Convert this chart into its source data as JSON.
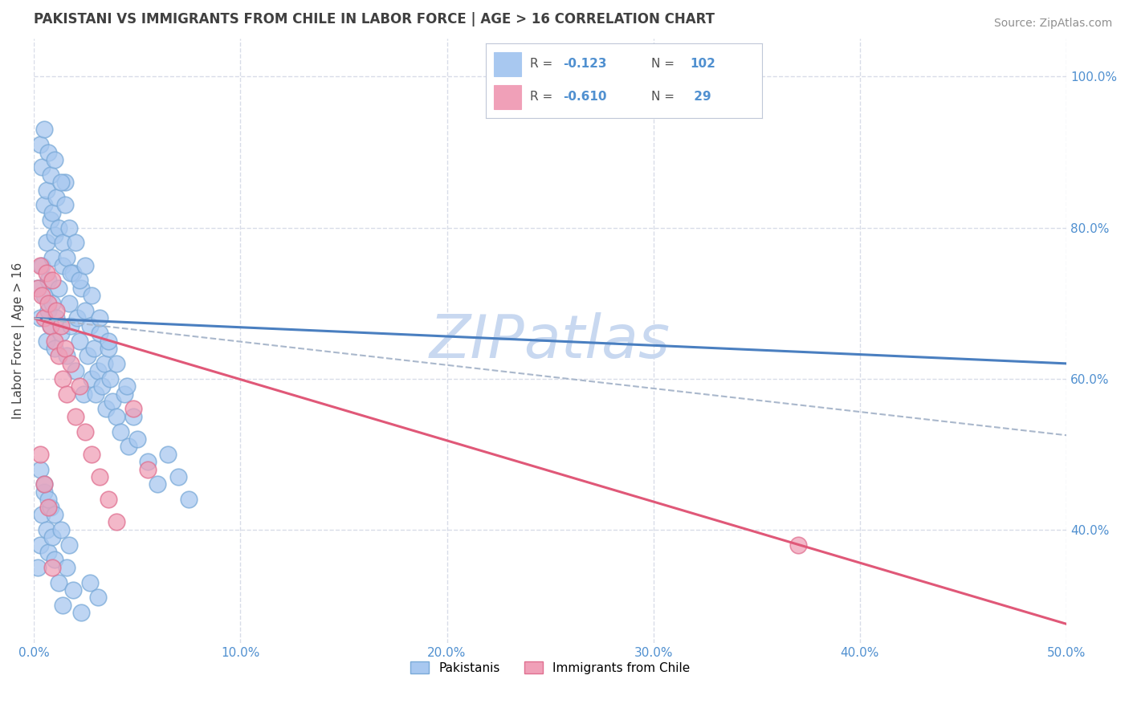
{
  "title": "PAKISTANI VS IMMIGRANTS FROM CHILE IN LABOR FORCE | AGE > 16 CORRELATION CHART",
  "source_text": "Source: ZipAtlas.com",
  "ylabel": "In Labor Force | Age > 16",
  "xlim": [
    0.0,
    0.5
  ],
  "ylim": [
    0.25,
    1.05
  ],
  "xticks": [
    0.0,
    0.1,
    0.2,
    0.3,
    0.4,
    0.5
  ],
  "xticklabels": [
    "0.0%",
    "10.0%",
    "20.0%",
    "30.0%",
    "40.0%",
    "50.0%"
  ],
  "yticks": [
    0.4,
    0.6,
    0.8,
    1.0
  ],
  "yticklabels": [
    "40.0%",
    "60.0%",
    "80.0%",
    "100.0%"
  ],
  "legend_label1": "Pakistanis",
  "legend_label2": "Immigrants from Chile",
  "blue_color": "#a8c8f0",
  "pink_color": "#f0a0b8",
  "blue_edge_color": "#7aaad8",
  "pink_edge_color": "#e07090",
  "blue_line_color": "#4a7fc0",
  "pink_line_color": "#e05878",
  "dashed_line_color": "#aab8cc",
  "watermark": "ZIPatlas",
  "watermark_color": "#c8d8f0",
  "title_color": "#404040",
  "source_color": "#909090",
  "tick_color": "#5090d0",
  "grid_color": "#d8dce8",
  "background_color": "#ffffff",
  "blue_trend_x": [
    0.0,
    0.5
  ],
  "blue_trend_y": [
    0.68,
    0.62
  ],
  "pink_trend_x": [
    0.0,
    0.5
  ],
  "pink_trend_y": [
    0.68,
    0.275
  ],
  "dashed_trend_x": [
    0.0,
    0.5
  ],
  "dashed_trend_y": [
    0.68,
    0.525
  ],
  "blue_scatter_x": [
    0.002,
    0.003,
    0.004,
    0.005,
    0.005,
    0.006,
    0.006,
    0.007,
    0.007,
    0.008,
    0.008,
    0.009,
    0.009,
    0.01,
    0.01,
    0.011,
    0.012,
    0.013,
    0.014,
    0.015,
    0.016,
    0.017,
    0.018,
    0.019,
    0.02,
    0.021,
    0.022,
    0.023,
    0.024,
    0.025,
    0.026,
    0.027,
    0.028,
    0.029,
    0.03,
    0.031,
    0.032,
    0.033,
    0.034,
    0.035,
    0.036,
    0.037,
    0.038,
    0.04,
    0.042,
    0.044,
    0.046,
    0.048,
    0.05,
    0.055,
    0.06,
    0.065,
    0.07,
    0.075,
    0.003,
    0.004,
    0.005,
    0.006,
    0.007,
    0.008,
    0.009,
    0.01,
    0.011,
    0.012,
    0.013,
    0.014,
    0.015,
    0.016,
    0.017,
    0.018,
    0.02,
    0.022,
    0.025,
    0.028,
    0.032,
    0.036,
    0.04,
    0.045,
    0.002,
    0.003,
    0.004,
    0.005,
    0.006,
    0.007,
    0.008,
    0.009,
    0.01,
    0.012,
    0.014,
    0.016,
    0.019,
    0.023,
    0.027,
    0.031,
    0.003,
    0.005,
    0.007,
    0.01,
    0.013,
    0.017
  ],
  "blue_scatter_y": [
    0.72,
    0.68,
    0.75,
    0.71,
    0.83,
    0.65,
    0.78,
    0.69,
    0.73,
    0.67,
    0.81,
    0.7,
    0.76,
    0.64,
    0.79,
    0.68,
    0.72,
    0.66,
    0.75,
    0.86,
    0.63,
    0.7,
    0.67,
    0.74,
    0.61,
    0.68,
    0.65,
    0.72,
    0.58,
    0.69,
    0.63,
    0.67,
    0.6,
    0.64,
    0.58,
    0.61,
    0.66,
    0.59,
    0.62,
    0.56,
    0.64,
    0.6,
    0.57,
    0.55,
    0.53,
    0.58,
    0.51,
    0.55,
    0.52,
    0.49,
    0.46,
    0.5,
    0.47,
    0.44,
    0.91,
    0.88,
    0.93,
    0.85,
    0.9,
    0.87,
    0.82,
    0.89,
    0.84,
    0.8,
    0.86,
    0.78,
    0.83,
    0.76,
    0.8,
    0.74,
    0.78,
    0.73,
    0.75,
    0.71,
    0.68,
    0.65,
    0.62,
    0.59,
    0.35,
    0.38,
    0.42,
    0.45,
    0.4,
    0.37,
    0.43,
    0.39,
    0.36,
    0.33,
    0.3,
    0.35,
    0.32,
    0.29,
    0.33,
    0.31,
    0.48,
    0.46,
    0.44,
    0.42,
    0.4,
    0.38
  ],
  "pink_scatter_x": [
    0.002,
    0.003,
    0.004,
    0.005,
    0.006,
    0.007,
    0.008,
    0.009,
    0.01,
    0.011,
    0.012,
    0.013,
    0.014,
    0.015,
    0.016,
    0.018,
    0.02,
    0.022,
    0.025,
    0.028,
    0.032,
    0.036,
    0.04,
    0.003,
    0.005,
    0.007,
    0.009,
    0.37,
    0.048,
    0.055
  ],
  "pink_scatter_y": [
    0.72,
    0.75,
    0.71,
    0.68,
    0.74,
    0.7,
    0.67,
    0.73,
    0.65,
    0.69,
    0.63,
    0.67,
    0.6,
    0.64,
    0.58,
    0.62,
    0.55,
    0.59,
    0.53,
    0.5,
    0.47,
    0.44,
    0.41,
    0.5,
    0.46,
    0.43,
    0.35,
    0.38,
    0.56,
    0.48
  ]
}
